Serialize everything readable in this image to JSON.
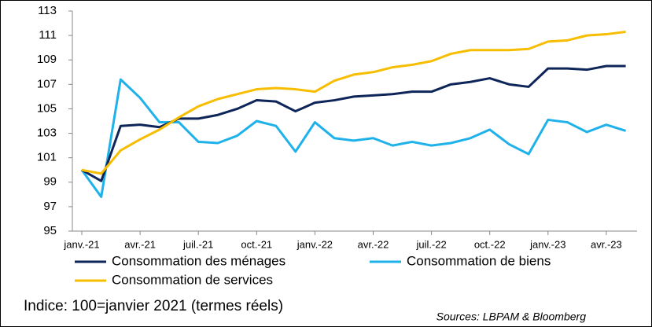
{
  "chart_data": {
    "type": "line",
    "categories": [
      "janv.-21",
      null,
      null,
      "avr.-21",
      null,
      null,
      "juil.-21",
      null,
      null,
      "oct.-21",
      null,
      null,
      "janv.-22",
      null,
      null,
      "avr.-22",
      null,
      null,
      "juil.-22",
      null,
      null,
      "oct.-22",
      null,
      null,
      "janv.-23",
      null,
      null,
      "avr.-23",
      null
    ],
    "series": [
      {
        "name": "Consommation des ménages",
        "color": "#0d2558",
        "values": [
          100,
          99.1,
          103.6,
          103.7,
          103.5,
          104.2,
          104.2,
          104.5,
          105.0,
          105.7,
          105.6,
          104.8,
          105.5,
          105.7,
          106.0,
          106.1,
          106.2,
          106.4,
          106.4,
          107.0,
          107.2,
          107.5,
          107.0,
          106.8,
          108.3,
          108.3,
          108.2,
          108.5,
          108.5
        ]
      },
      {
        "name": "Consommation de biens",
        "color": "#1fb1ea",
        "values": [
          100,
          97.8,
          107.4,
          105.9,
          103.9,
          103.9,
          102.3,
          102.2,
          102.8,
          104.0,
          103.6,
          101.5,
          103.9,
          102.6,
          102.4,
          102.6,
          102.0,
          102.3,
          102.0,
          102.2,
          102.6,
          103.3,
          102.1,
          101.3,
          104.1,
          103.9,
          103.1,
          103.7,
          103.2
        ]
      },
      {
        "name": "Consommation de services",
        "color": "#f7bd00",
        "values": [
          100,
          99.7,
          101.6,
          102.5,
          103.3,
          104.3,
          105.2,
          105.8,
          106.2,
          106.6,
          106.7,
          106.6,
          106.4,
          107.3,
          107.8,
          108.0,
          108.4,
          108.6,
          108.9,
          109.5,
          109.8,
          109.8,
          109.8,
          109.9,
          110.5,
          110.6,
          111.0,
          111.1,
          111.3
        ]
      }
    ],
    "ylim": [
      95,
      113
    ],
    "yticks": [
      95,
      97,
      99,
      101,
      103,
      105,
      107,
      109,
      111,
      113
    ],
    "note": "Indice: 100=janvier 2021 (termes réels)",
    "source": "Sources: LBPAM & Bloomberg"
  }
}
